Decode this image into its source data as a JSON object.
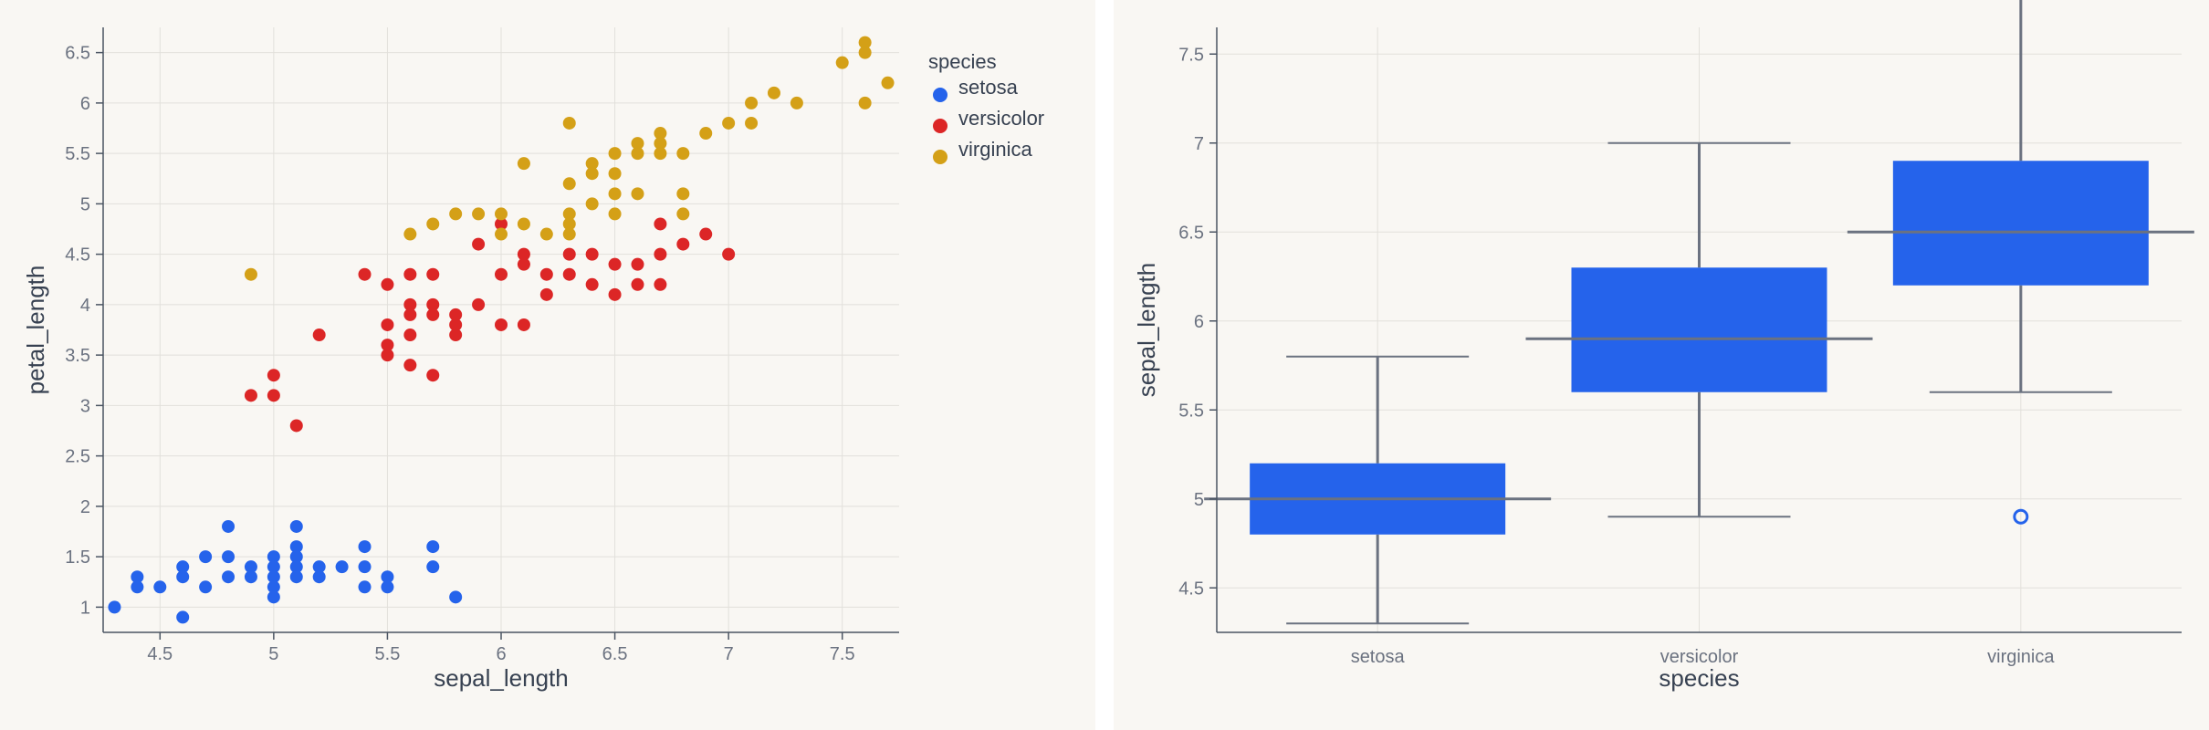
{
  "chart_data": [
    {
      "type": "scatter",
      "xlabel": "sepal_length",
      "ylabel": "petal_length",
      "xlim": [
        4.25,
        7.75
      ],
      "ylim": [
        0.75,
        6.75
      ],
      "xticks": [
        "4.5",
        "5",
        "5.5",
        "6",
        "6.5",
        "7",
        "7.5"
      ],
      "yticks": [
        "1",
        "1.5",
        "2",
        "2.5",
        "3",
        "3.5",
        "4",
        "4.5",
        "5",
        "5.5",
        "6",
        "6.5"
      ],
      "grid": true,
      "legend": {
        "title": "species",
        "position": "top-right"
      },
      "series": [
        {
          "name": "setosa",
          "color": "#2563eb",
          "points": [
            [
              4.3,
              1.0
            ],
            [
              4.4,
              1.3
            ],
            [
              4.4,
              1.2
            ],
            [
              4.5,
              1.2
            ],
            [
              4.6,
              0.9
            ],
            [
              4.6,
              1.4
            ],
            [
              4.6,
              1.3
            ],
            [
              4.7,
              1.5
            ],
            [
              4.7,
              1.2
            ],
            [
              4.8,
              1.8
            ],
            [
              4.8,
              1.5
            ],
            [
              4.8,
              1.3
            ],
            [
              4.9,
              1.4
            ],
            [
              4.9,
              1.3
            ],
            [
              5.0,
              1.5
            ],
            [
              5.0,
              1.4
            ],
            [
              5.0,
              1.3
            ],
            [
              5.0,
              1.2
            ],
            [
              5.0,
              1.1
            ],
            [
              5.1,
              1.8
            ],
            [
              5.1,
              1.6
            ],
            [
              5.1,
              1.5
            ],
            [
              5.1,
              1.4
            ],
            [
              5.1,
              1.3
            ],
            [
              5.2,
              1.4
            ],
            [
              5.2,
              1.3
            ],
            [
              5.3,
              1.4
            ],
            [
              5.4,
              1.6
            ],
            [
              5.4,
              1.4
            ],
            [
              5.4,
              1.2
            ],
            [
              5.5,
              1.3
            ],
            [
              5.5,
              1.2
            ],
            [
              5.7,
              1.6
            ],
            [
              5.7,
              1.4
            ],
            [
              5.8,
              1.1
            ]
          ]
        },
        {
          "name": "versicolor",
          "color": "#dc2626",
          "points": [
            [
              4.9,
              3.1
            ],
            [
              5.0,
              3.3
            ],
            [
              5.0,
              3.1
            ],
            [
              5.1,
              2.8
            ],
            [
              5.2,
              3.7
            ],
            [
              5.4,
              4.3
            ],
            [
              5.5,
              4.2
            ],
            [
              5.5,
              3.8
            ],
            [
              5.5,
              3.6
            ],
            [
              5.5,
              3.5
            ],
            [
              5.6,
              4.3
            ],
            [
              5.6,
              4.0
            ],
            [
              5.6,
              3.9
            ],
            [
              5.6,
              3.7
            ],
            [
              5.6,
              3.4
            ],
            [
              5.7,
              4.3
            ],
            [
              5.7,
              4.0
            ],
            [
              5.7,
              3.9
            ],
            [
              5.7,
              3.3
            ],
            [
              5.8,
              3.9
            ],
            [
              5.8,
              3.8
            ],
            [
              5.8,
              3.7
            ],
            [
              5.9,
              4.6
            ],
            [
              5.9,
              4.0
            ],
            [
              6.0,
              4.8
            ],
            [
              6.0,
              4.3
            ],
            [
              6.0,
              3.8
            ],
            [
              6.1,
              4.5
            ],
            [
              6.1,
              4.4
            ],
            [
              6.1,
              3.8
            ],
            [
              6.2,
              4.3
            ],
            [
              6.2,
              4.1
            ],
            [
              6.3,
              4.5
            ],
            [
              6.3,
              4.3
            ],
            [
              6.4,
              4.5
            ],
            [
              6.4,
              4.2
            ],
            [
              6.5,
              4.4
            ],
            [
              6.5,
              4.1
            ],
            [
              6.6,
              4.4
            ],
            [
              6.6,
              4.2
            ],
            [
              6.7,
              4.8
            ],
            [
              6.7,
              4.5
            ],
            [
              6.7,
              4.2
            ],
            [
              6.8,
              4.6
            ],
            [
              6.9,
              4.7
            ],
            [
              7.0,
              4.5
            ]
          ]
        },
        {
          "name": "virginica",
          "color": "#d4a017",
          "points": [
            [
              4.9,
              4.3
            ],
            [
              5.6,
              4.7
            ],
            [
              5.7,
              4.8
            ],
            [
              5.8,
              4.9
            ],
            [
              5.9,
              4.9
            ],
            [
              6.0,
              4.9
            ],
            [
              6.0,
              4.7
            ],
            [
              6.1,
              5.4
            ],
            [
              6.1,
              4.8
            ],
            [
              6.2,
              4.7
            ],
            [
              6.3,
              5.2
            ],
            [
              6.3,
              4.9
            ],
            [
              6.3,
              4.8
            ],
            [
              6.3,
              4.7
            ],
            [
              6.3,
              5.8
            ],
            [
              6.4,
              5.4
            ],
            [
              6.4,
              5.3
            ],
            [
              6.4,
              5.0
            ],
            [
              6.5,
              5.5
            ],
            [
              6.5,
              5.3
            ],
            [
              6.5,
              5.1
            ],
            [
              6.5,
              4.9
            ],
            [
              6.6,
              5.6
            ],
            [
              6.6,
              5.5
            ],
            [
              6.6,
              5.1
            ],
            [
              6.7,
              5.7
            ],
            [
              6.7,
              5.6
            ],
            [
              6.7,
              5.5
            ],
            [
              6.8,
              5.5
            ],
            [
              6.8,
              5.1
            ],
            [
              6.8,
              4.9
            ],
            [
              6.9,
              5.7
            ],
            [
              7.0,
              5.8
            ],
            [
              7.1,
              6.0
            ],
            [
              7.1,
              5.8
            ],
            [
              7.2,
              6.1
            ],
            [
              7.3,
              6.0
            ],
            [
              7.5,
              6.4
            ],
            [
              7.6,
              6.6
            ],
            [
              7.6,
              6.5
            ],
            [
              7.6,
              6.0
            ],
            [
              7.7,
              6.2
            ]
          ]
        }
      ]
    },
    {
      "type": "box",
      "xlabel": "species",
      "ylabel": "sepal_length",
      "ylim": [
        4.25,
        7.65
      ],
      "yticks": [
        "4.5",
        "5",
        "5.5",
        "6",
        "6.5",
        "7",
        "7.5"
      ],
      "grid": true,
      "categories": [
        "setosa",
        "versicolor",
        "virginica"
      ],
      "color": "#2563eb",
      "boxes": [
        {
          "category": "setosa",
          "min": 4.3,
          "q1": 4.8,
          "median": 5.0,
          "q3": 5.2,
          "max": 5.8,
          "outliers": []
        },
        {
          "category": "versicolor",
          "min": 4.9,
          "q1": 5.6,
          "median": 5.9,
          "q3": 6.3,
          "max": 7.0,
          "outliers": []
        },
        {
          "category": "virginica",
          "min": 5.6,
          "q1": 6.2,
          "median": 6.5,
          "q3": 6.9,
          "max": 7.9,
          "outliers": [
            4.9
          ]
        }
      ]
    }
  ]
}
